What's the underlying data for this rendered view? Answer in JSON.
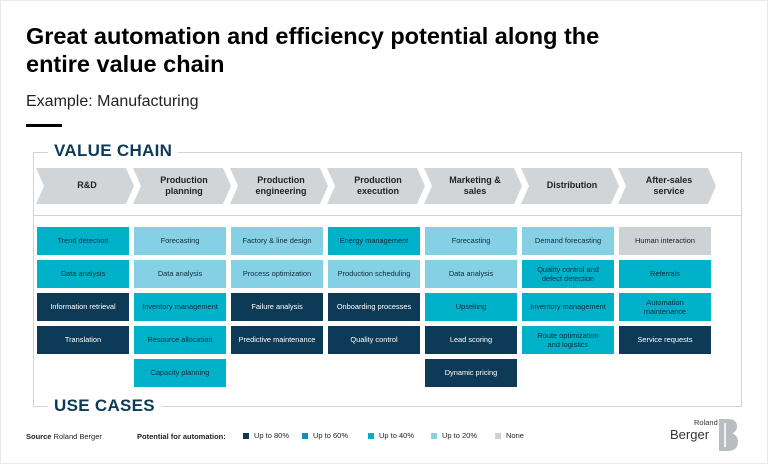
{
  "title": "Great automation and efficiency potential along the entire value chain",
  "subtitle": "Example: Manufacturing",
  "value_chain_label": "VALUE CHAIN",
  "use_cases_label": "USE CASES",
  "stages": [
    {
      "label": "R&D",
      "cases": [
        {
          "text": "Trend detection",
          "level": "40"
        },
        {
          "text": "Data analysis",
          "level": "40"
        },
        {
          "text": "Information retrieval",
          "level": "80"
        },
        {
          "text": "Translation",
          "level": "80"
        }
      ]
    },
    {
      "label": "Production\nplanning",
      "cases": [
        {
          "text": "Forecasting",
          "level": "20"
        },
        {
          "text": "Data analysis",
          "level": "20"
        },
        {
          "text": "Inventory management",
          "level": "40"
        },
        {
          "text": "Resource allocation",
          "level": "40"
        },
        {
          "text": "Capacity planning",
          "level": "40"
        }
      ]
    },
    {
      "label": "Production\nengineering",
      "cases": [
        {
          "text": "Factory & line design",
          "level": "20"
        },
        {
          "text": "Process optimization",
          "level": "20"
        },
        {
          "text": "Failure analysis",
          "level": "80"
        },
        {
          "text": "Predictive maintenance",
          "level": "80"
        }
      ]
    },
    {
      "label": "Production\nexecution",
      "cases": [
        {
          "text": "Energy management",
          "level": "40"
        },
        {
          "text": "Production scheduling",
          "level": "20"
        },
        {
          "text": "Onboarding processes",
          "level": "80"
        },
        {
          "text": "Quality control",
          "level": "80"
        }
      ]
    },
    {
      "label": "Marketing &\nsales",
      "cases": [
        {
          "text": "Forecasting",
          "level": "20"
        },
        {
          "text": "Data analysis",
          "level": "20"
        },
        {
          "text": "Upselling",
          "level": "40"
        },
        {
          "text": "Lead scoring",
          "level": "80"
        },
        {
          "text": "Dynamic pricing",
          "level": "80"
        }
      ]
    },
    {
      "label": "Distribution",
      "cases": [
        {
          "text": "Demand forecasting",
          "level": "20"
        },
        {
          "text": "Quality control and\ndefect detection",
          "level": "40"
        },
        {
          "text": "Inventory management",
          "level": "40"
        },
        {
          "text": "Route optimization\nand logistics",
          "level": "40"
        }
      ]
    },
    {
      "label": "After-sales\nservice",
      "cases": [
        {
          "text": "Human interaction",
          "level": "none"
        },
        {
          "text": "Referrals",
          "level": "40"
        },
        {
          "text": "Automation\nmaintenance",
          "level": "40"
        },
        {
          "text": "Service requests",
          "level": "80"
        }
      ]
    }
  ],
  "footer": {
    "source_label": "Source",
    "source_value": "Roland Berger",
    "legend_title": "Potential for automation:",
    "legend": [
      {
        "label": "Up to 80%",
        "level": "80",
        "color": "#0d3a57"
      },
      {
        "label": "Up to 60%",
        "level": "60",
        "color": "#0b91b2"
      },
      {
        "label": "Up to 40%",
        "level": "40",
        "color": "#00b2c9"
      },
      {
        "label": "Up to 20%",
        "level": "20",
        "color": "#86d0e6"
      },
      {
        "label": "None",
        "level": "none",
        "color": "#cfd2d4"
      }
    ]
  },
  "logo": {
    "line1": "Roland",
    "line2": "Berger"
  }
}
